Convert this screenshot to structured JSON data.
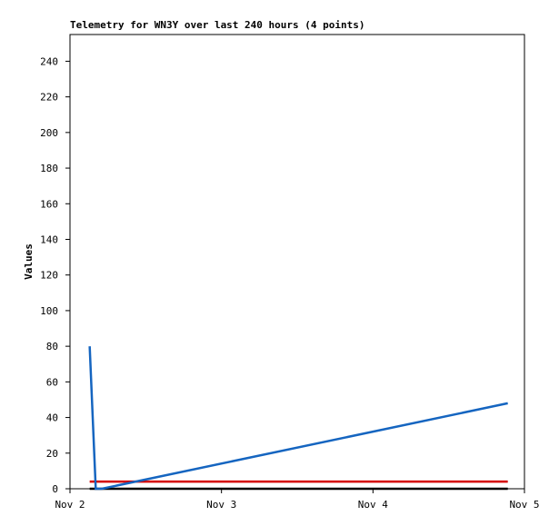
{
  "chart_data": {
    "type": "line",
    "title": "Telemetry for WN3Y over last 240 hours (4 points)",
    "ylabel": "Values",
    "x": [
      2.13,
      2.17,
      2.21,
      4.89
    ],
    "xlim": [
      2,
      5
    ],
    "xticks": [
      {
        "value": 2,
        "label": "Nov 2"
      },
      {
        "value": 3,
        "label": "Nov 3"
      },
      {
        "value": 4,
        "label": "Nov 4"
      },
      {
        "value": 5,
        "label": "Nov 5"
      }
    ],
    "ylim": [
      0,
      255
    ],
    "yticks": [
      0,
      20,
      40,
      60,
      80,
      100,
      120,
      140,
      160,
      180,
      200,
      220,
      240
    ],
    "series": [
      {
        "color": "#000000",
        "values": [
          0,
          0,
          0,
          0
        ]
      },
      {
        "color": "#d40000",
        "values": [
          4,
          4,
          4,
          4
        ]
      },
      {
        "color": "#1565c0",
        "values": [
          80,
          0,
          0,
          48
        ]
      }
    ]
  }
}
